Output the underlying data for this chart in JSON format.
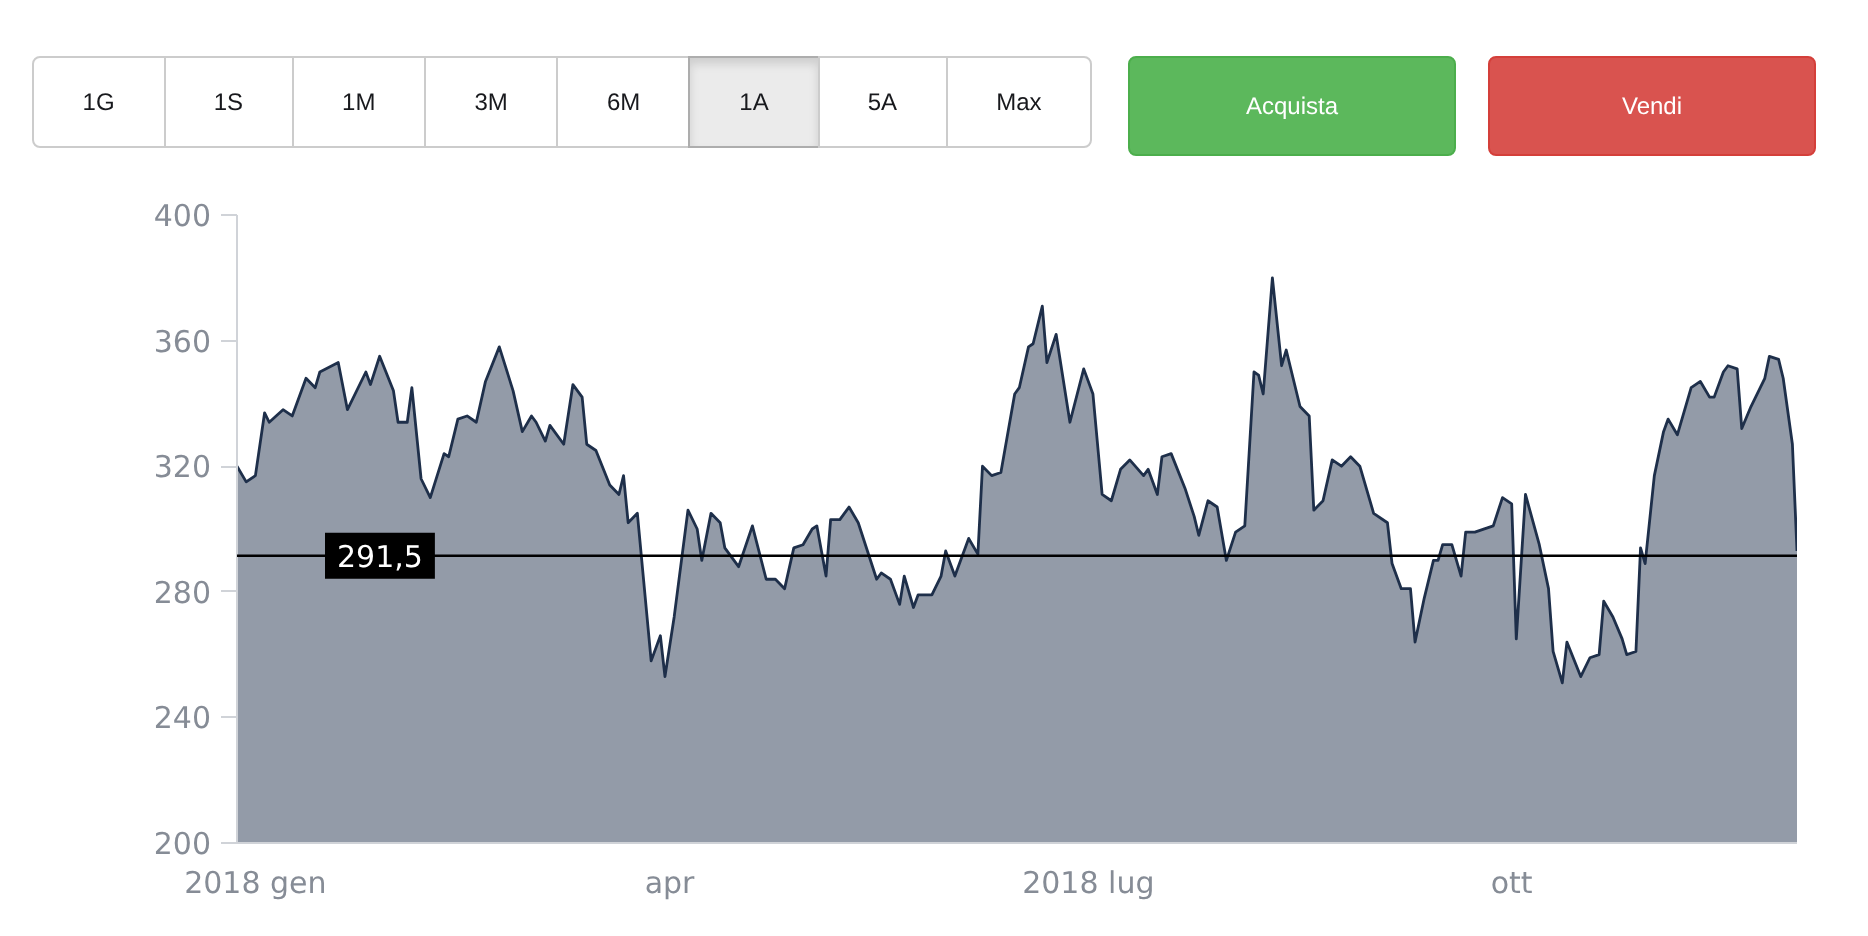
{
  "chart_data": {
    "type": "area",
    "annotations": [
      "1G",
      "1S",
      "1M",
      "3M",
      "6M",
      "1A",
      "5A",
      "Max",
      "Acquista",
      "Vendi"
    ],
    "x": [
      "2017-12-28",
      "2017-12-30",
      "2018-01-01",
      "2018-01-03",
      "2018-01-04",
      "2018-01-07",
      "2018-01-09",
      "2018-01-12",
      "2018-01-14",
      "2018-01-15",
      "2018-01-19",
      "2018-01-21",
      "2018-01-25",
      "2018-01-26",
      "2018-01-28",
      "2018-01-31",
      "2018-02-01",
      "2018-02-03",
      "2018-02-04",
      "2018-02-06",
      "2018-02-08",
      "2018-02-11",
      "2018-02-12",
      "2018-02-14",
      "2018-02-16",
      "2018-02-18",
      "2018-02-20",
      "2018-02-23",
      "2018-02-26",
      "2018-02-28",
      "2018-03-02",
      "2018-03-03",
      "2018-03-05",
      "2018-03-06",
      "2018-03-09",
      "2018-03-11",
      "2018-03-13",
      "2018-03-14",
      "2018-03-16",
      "2018-03-19",
      "2018-03-21",
      "2018-03-22",
      "2018-03-23",
      "2018-03-25",
      "2018-03-28",
      "2018-03-30",
      "2018-03-31",
      "2018-04-02",
      "2018-04-05",
      "2018-04-07",
      "2018-04-08",
      "2018-04-10",
      "2018-04-12",
      "2018-04-13",
      "2018-04-16",
      "2018-04-19",
      "2018-04-22",
      "2018-04-24",
      "2018-04-26",
      "2018-04-28",
      "2018-04-30",
      "2018-05-02",
      "2018-05-03",
      "2018-05-05",
      "2018-05-06",
      "2018-05-08",
      "2018-05-10",
      "2018-05-12",
      "2018-05-16",
      "2018-05-17",
      "2018-05-19",
      "2018-05-21",
      "2018-05-22",
      "2018-05-24",
      "2018-05-25",
      "2018-05-28",
      "2018-05-30",
      "2018-05-31",
      "2018-06-02",
      "2018-06-05",
      "2018-06-07",
      "2018-06-08",
      "2018-06-10",
      "2018-06-12",
      "2018-06-15",
      "2018-06-16",
      "2018-06-18",
      "2018-06-19",
      "2018-06-21",
      "2018-06-22",
      "2018-06-24",
      "2018-06-27",
      "2018-06-30",
      "2018-07-02",
      "2018-07-04",
      "2018-07-06",
      "2018-07-08",
      "2018-07-10",
      "2018-07-13",
      "2018-07-14",
      "2018-07-16",
      "2018-07-17",
      "2018-07-19",
      "2018-07-22",
      "2018-07-24",
      "2018-07-25",
      "2018-07-27",
      "2018-07-29",
      "2018-07-31",
      "2018-08-02",
      "2018-08-04",
      "2018-08-06",
      "2018-08-07",
      "2018-08-08",
      "2018-08-10",
      "2018-08-12",
      "2018-08-13",
      "2018-08-16",
      "2018-08-18",
      "2018-08-19",
      "2018-08-21",
      "2018-08-23",
      "2018-08-25",
      "2018-08-27",
      "2018-08-29",
      "2018-09-01",
      "2018-09-04",
      "2018-09-05",
      "2018-09-07",
      "2018-09-09",
      "2018-09-10",
      "2018-09-12",
      "2018-09-14",
      "2018-09-15",
      "2018-09-16",
      "2018-09-18",
      "2018-09-20",
      "2018-09-21",
      "2018-09-23",
      "2018-09-27",
      "2018-09-29",
      "2018-10-01",
      "2018-10-02",
      "2018-10-04",
      "2018-10-07",
      "2018-10-09",
      "2018-10-10",
      "2018-10-12",
      "2018-10-13",
      "2018-10-16",
      "2018-10-18",
      "2018-10-20",
      "2018-10-21",
      "2018-10-23",
      "2018-10-25",
      "2018-10-26",
      "2018-10-28",
      "2018-10-29",
      "2018-10-30",
      "2018-11-01",
      "2018-11-03",
      "2018-11-04",
      "2018-11-06",
      "2018-11-09",
      "2018-11-11",
      "2018-11-13",
      "2018-11-14",
      "2018-11-16",
      "2018-11-17",
      "2018-11-19",
      "2018-11-20",
      "2018-11-22",
      "2018-11-25",
      "2018-11-26",
      "2018-11-28",
      "2018-11-29",
      "2018-12-01",
      "2018-12-02"
    ],
    "series": [
      {
        "color": "#1e2f4a",
        "values": [
          320,
          315,
          317,
          337,
          334,
          338,
          336,
          348,
          345,
          350,
          353,
          338,
          350,
          346,
          355,
          344,
          334,
          334,
          345,
          316,
          310,
          324,
          323,
          335,
          336,
          334,
          347,
          358,
          344,
          331,
          336,
          334,
          328,
          333,
          327,
          346,
          342,
          327,
          325,
          314,
          311,
          317,
          302,
          305,
          258,
          266,
          253,
          272,
          306,
          300,
          290,
          305,
          302,
          294,
          288,
          301,
          284,
          284,
          281,
          294,
          295,
          300,
          301,
          285,
          303,
          303,
          307,
          302,
          284,
          286,
          284,
          276,
          285,
          275,
          279,
          279,
          285,
          293,
          285,
          297,
          292,
          320,
          317,
          318,
          343,
          345,
          358,
          359,
          371,
          353,
          362,
          334,
          351,
          343,
          311,
          309,
          319,
          322,
          317,
          319,
          311,
          323,
          324,
          313,
          304,
          298,
          309,
          307,
          290,
          299,
          301,
          350,
          349,
          343,
          380,
          352,
          357,
          339,
          336,
          306,
          309,
          322,
          320,
          323,
          320,
          305,
          302,
          289,
          281,
          281,
          264,
          278,
          290,
          290,
          295,
          295,
          285,
          299,
          299,
          301,
          310,
          308,
          265,
          311,
          295,
          281,
          261,
          251,
          264,
          253,
          259,
          260,
          277,
          272,
          265,
          260,
          261,
          294,
          289,
          317,
          331,
          335,
          330,
          345,
          347,
          342,
          342,
          350,
          352,
          351,
          332,
          339,
          348,
          355,
          354,
          348,
          327,
          293
        ]
      }
    ],
    "xlim": [
      "2017-12-28",
      "2018-12-02"
    ],
    "xticks": [
      {
        "value": "2018-01-01",
        "label": "2018 gen"
      },
      {
        "value": "2018-04-01",
        "label": "apr"
      },
      {
        "value": "2018-07-01",
        "label": "2018 lug"
      },
      {
        "value": "2018-10-01",
        "label": "ott"
      }
    ],
    "ylim": [
      200,
      400
    ],
    "yticks": [
      200,
      240,
      280,
      320,
      360,
      400
    ],
    "ref_lines": [
      {
        "axis": "y",
        "value": 291.5,
        "label": "291,5",
        "color": "#000000"
      }
    ],
    "grid": false
  }
}
